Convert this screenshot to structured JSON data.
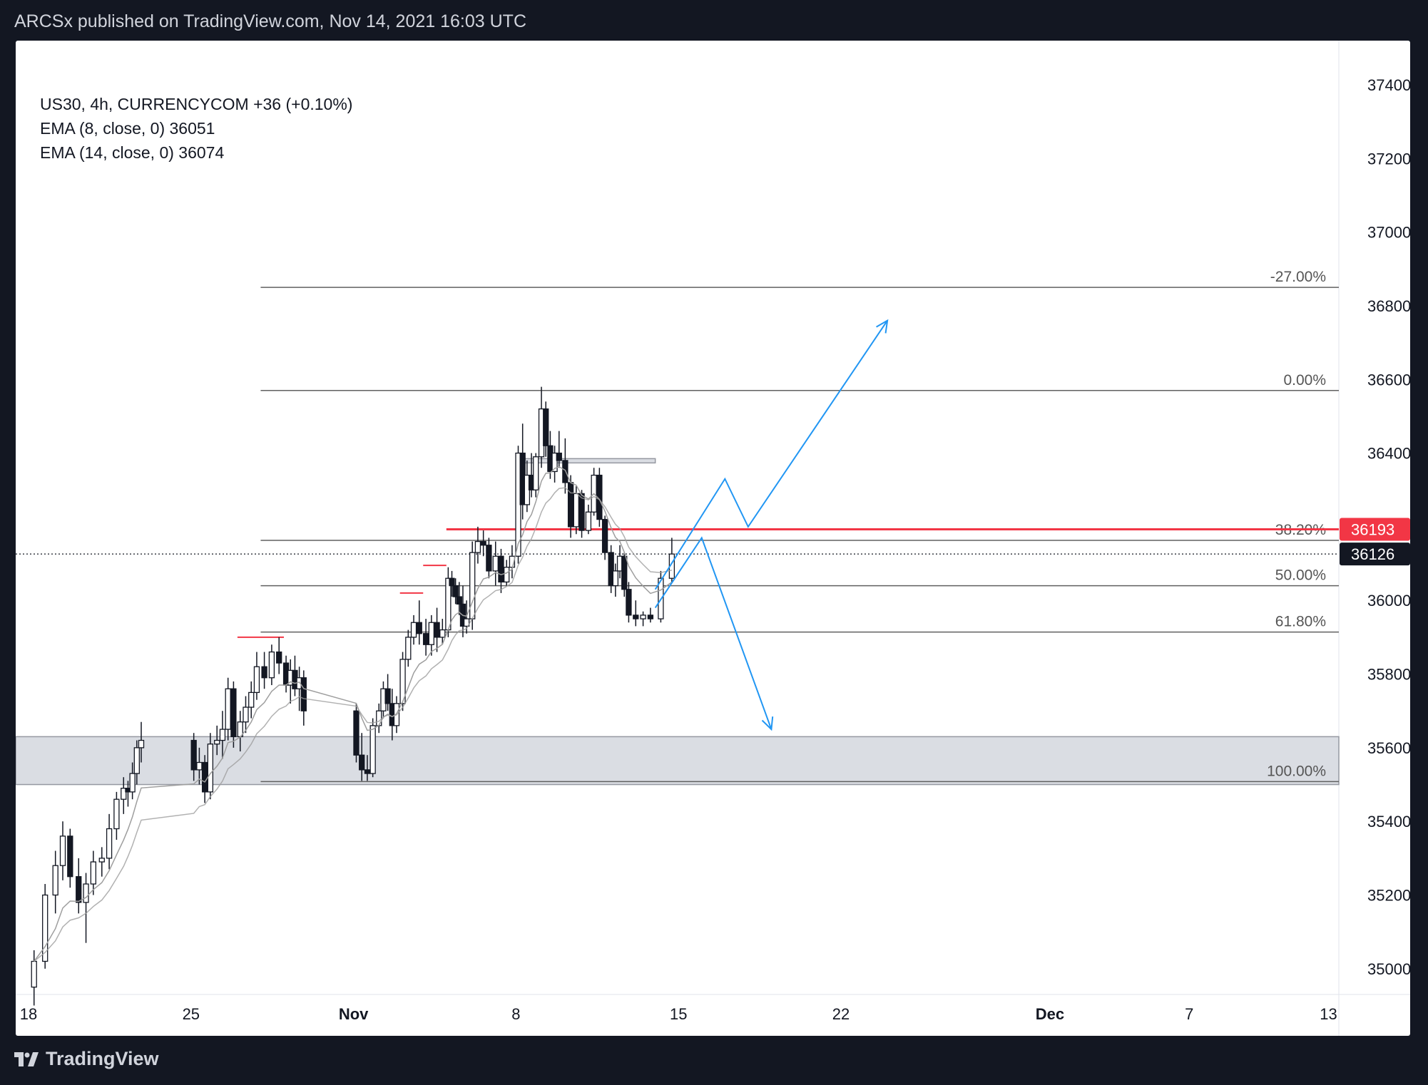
{
  "header": {
    "published": "ARCSx published on TradingView.com, Nov 14, 2021 16:03 UTC"
  },
  "legend": {
    "symbol": "US30, 4h, CURRENCYCOM  +36 (+0.10%)",
    "ema8": "EMA (8, close, 0)  36051",
    "ema14": "EMA (14, close, 0)  36074"
  },
  "footer": {
    "brand": "TradingView"
  },
  "colors": {
    "up": "#131722",
    "down": "#131722",
    "ema": "#9e9e9e",
    "fib": "#606060",
    "resistance": "#f23645",
    "arrow": "#2196f3",
    "zone": "#d1d4dc",
    "last_price_bg": "#131722"
  },
  "chart_data": {
    "type": "candlestick",
    "symbol": "US30",
    "interval": "4h",
    "ylim": [
      34930,
      37520
    ],
    "y_ticks": [
      35000,
      35200,
      35400,
      35600,
      35800,
      36000,
      36200,
      36400,
      36600,
      36800,
      37000,
      37200,
      37400
    ],
    "x_range": [
      "2021-10-18",
      "2021-12-14"
    ],
    "x_ticks": [
      {
        "date": "2021-10-18",
        "label": "18"
      },
      {
        "date": "2021-10-25",
        "label": "25"
      },
      {
        "date": "2021-11-01",
        "label": "Nov"
      },
      {
        "date": "2021-11-08",
        "label": "8"
      },
      {
        "date": "2021-11-15",
        "label": "15"
      },
      {
        "date": "2021-11-22",
        "label": "22"
      },
      {
        "date": "2021-12-01",
        "label": "Dec"
      },
      {
        "date": "2021-12-07",
        "label": "7"
      },
      {
        "date": "2021-12-13",
        "label": "13"
      }
    ],
    "candles": [
      [
        "2021-10-18",
        34950,
        35050,
        34900,
        35020
      ],
      [
        "2021-10-18",
        35020,
        35230,
        35000,
        35200
      ],
      [
        "2021-10-19",
        35200,
        35320,
        35150,
        35280
      ],
      [
        "2021-10-19",
        35280,
        35400,
        35240,
        35360
      ],
      [
        "2021-10-19",
        35360,
        35380,
        35220,
        35250
      ],
      [
        "2021-10-20",
        35250,
        35300,
        35150,
        35180
      ],
      [
        "2021-10-20",
        35180,
        35260,
        35070,
        35230
      ],
      [
        "2021-10-20",
        35230,
        35320,
        35200,
        35290
      ],
      [
        "2021-10-21",
        35290,
        35330,
        35250,
        35300
      ],
      [
        "2021-10-21",
        35300,
        35420,
        35270,
        35380
      ],
      [
        "2021-10-21",
        35380,
        35480,
        35350,
        35460
      ],
      [
        "2021-10-22",
        35460,
        35520,
        35420,
        35490
      ],
      [
        "2021-10-22",
        35490,
        35510,
        35440,
        35480
      ],
      [
        "2021-10-22",
        35480,
        35560,
        35460,
        35530
      ],
      [
        "2021-10-22",
        35530,
        35620,
        35500,
        35600
      ],
      [
        "2021-10-22",
        35600,
        35670,
        35560,
        35620
      ],
      [
        "2021-10-25",
        35620,
        35640,
        35510,
        35540
      ],
      [
        "2021-10-25",
        35540,
        35600,
        35500,
        35560
      ],
      [
        "2021-10-25",
        35560,
        35580,
        35450,
        35480
      ],
      [
        "2021-10-25",
        35480,
        35640,
        35460,
        35610
      ],
      [
        "2021-10-26",
        35610,
        35660,
        35580,
        35620
      ],
      [
        "2021-10-26",
        35620,
        35700,
        35570,
        35650
      ],
      [
        "2021-10-26",
        35650,
        35790,
        35620,
        35760
      ],
      [
        "2021-10-26",
        35760,
        35780,
        35600,
        35630
      ],
      [
        "2021-10-27",
        35630,
        35700,
        35590,
        35670
      ],
      [
        "2021-10-27",
        35670,
        35740,
        35640,
        35710
      ],
      [
        "2021-10-27",
        35710,
        35780,
        35680,
        35750
      ],
      [
        "2021-10-27",
        35750,
        35860,
        35730,
        35820
      ],
      [
        "2021-10-28",
        35820,
        35860,
        35760,
        35790
      ],
      [
        "2021-10-28",
        35790,
        35880,
        35770,
        35860
      ],
      [
        "2021-10-28",
        35860,
        35900,
        35800,
        35830
      ],
      [
        "2021-10-29",
        35830,
        35850,
        35750,
        35770
      ],
      [
        "2021-10-29",
        35770,
        35840,
        35720,
        35810
      ],
      [
        "2021-10-29",
        35810,
        35850,
        35740,
        35760
      ],
      [
        "2021-10-29",
        35760,
        35820,
        35700,
        35790
      ],
      [
        "2021-10-29",
        35790,
        35810,
        35660,
        35700
      ],
      [
        "2021-11-01",
        35700,
        35720,
        35560,
        35580
      ],
      [
        "2021-11-01",
        35580,
        35640,
        35510,
        35540
      ],
      [
        "2021-11-01",
        35540,
        35580,
        35510,
        35530
      ],
      [
        "2021-11-01",
        35530,
        35680,
        35520,
        35660
      ],
      [
        "2021-11-02",
        35660,
        35720,
        35640,
        35700
      ],
      [
        "2021-11-02",
        35700,
        35780,
        35680,
        35760
      ],
      [
        "2021-11-02",
        35760,
        35800,
        35700,
        35720
      ],
      [
        "2021-11-02",
        35720,
        35760,
        35620,
        35660
      ],
      [
        "2021-11-02",
        35660,
        35740,
        35640,
        35720
      ],
      [
        "2021-11-03",
        35720,
        35860,
        35700,
        35840
      ],
      [
        "2021-11-03",
        35840,
        35920,
        35820,
        35900
      ],
      [
        "2021-11-03",
        35900,
        35960,
        35880,
        35940
      ],
      [
        "2021-11-03",
        35940,
        36000,
        35880,
        35910
      ],
      [
        "2021-11-04",
        35910,
        35950,
        35850,
        35880
      ],
      [
        "2021-11-04",
        35880,
        35960,
        35850,
        35940
      ],
      [
        "2021-11-04",
        35940,
        35980,
        35860,
        35900
      ],
      [
        "2021-11-04",
        35900,
        35950,
        35880,
        35920
      ],
      [
        "2021-11-05",
        35920,
        36090,
        35900,
        36060
      ],
      [
        "2021-11-05",
        36060,
        36080,
        36010,
        36040
      ],
      [
        "2021-11-05",
        36040,
        36060,
        35990,
        36010
      ],
      [
        "2021-11-05",
        36010,
        36050,
        35960,
        35990
      ],
      [
        "2021-11-05",
        35990,
        36040,
        35900,
        35930
      ],
      [
        "2021-11-05",
        35930,
        36000,
        35910,
        35950
      ],
      [
        "2021-11-06",
        35950,
        36160,
        35920,
        36130
      ],
      [
        "2021-11-06",
        36130,
        36200,
        36100,
        36160
      ],
      [
        "2021-11-06",
        36160,
        36190,
        36120,
        36150
      ],
      [
        "2021-11-06",
        36150,
        36170,
        36060,
        36080
      ],
      [
        "2021-11-07",
        36080,
        36160,
        36040,
        36120
      ],
      [
        "2021-11-07",
        36120,
        36140,
        36020,
        36050
      ],
      [
        "2021-11-07",
        36050,
        36110,
        36040,
        36090
      ],
      [
        "2021-11-07",
        36090,
        36150,
        36060,
        36120
      ],
      [
        "2021-11-08",
        36120,
        36420,
        36100,
        36400
      ],
      [
        "2021-11-08",
        36400,
        36480,
        36220,
        36260
      ],
      [
        "2021-11-08",
        36260,
        36380,
        36240,
        36340
      ],
      [
        "2021-11-08",
        36340,
        36400,
        36280,
        36300
      ],
      [
        "2021-11-08",
        36300,
        36400,
        36280,
        36390
      ],
      [
        "2021-11-09",
        36390,
        36580,
        36360,
        36520
      ],
      [
        "2021-11-09",
        36520,
        36540,
        36390,
        36420
      ],
      [
        "2021-11-09",
        36420,
        36460,
        36330,
        36350
      ],
      [
        "2021-11-09",
        36350,
        36420,
        36320,
        36400
      ],
      [
        "2021-11-09",
        36400,
        36460,
        36360,
        36380
      ],
      [
        "2021-11-10",
        36380,
        36440,
        36290,
        36320
      ],
      [
        "2021-11-10",
        36320,
        36340,
        36170,
        36200
      ],
      [
        "2021-11-10",
        36200,
        36310,
        36180,
        36290
      ],
      [
        "2021-11-10",
        36290,
        36300,
        36170,
        36190
      ],
      [
        "2021-11-11",
        36190,
        36260,
        36180,
        36240
      ],
      [
        "2021-11-11",
        36240,
        36360,
        36230,
        36340
      ],
      [
        "2021-11-11",
        36340,
        36360,
        36200,
        36220
      ],
      [
        "2021-11-11",
        36220,
        36230,
        36110,
        36130
      ],
      [
        "2021-11-12",
        36130,
        36150,
        36020,
        36040
      ],
      [
        "2021-11-12",
        36040,
        36100,
        36010,
        36080
      ],
      [
        "2021-11-12",
        36080,
        36150,
        36060,
        36120
      ],
      [
        "2021-11-12",
        36120,
        36130,
        36010,
        36030
      ],
      [
        "2021-11-12",
        36030,
        36050,
        35940,
        35960
      ],
      [
        "2021-11-13",
        35960,
        36000,
        35930,
        35950
      ],
      [
        "2021-11-13",
        35950,
        35970,
        35930,
        35960
      ],
      [
        "2021-11-13",
        35960,
        35980,
        35940,
        35950
      ],
      [
        "2021-11-14",
        35950,
        36080,
        35940,
        36060
      ],
      [
        "2021-11-14",
        36060,
        36170,
        36050,
        36126
      ]
    ],
    "ema_lines": [
      {
        "name": "EMA (8, close, 0)",
        "value": 36051
      },
      {
        "name": "EMA (14, close, 0)",
        "value": 36074
      }
    ],
    "fib_levels": [
      {
        "level": "-27.00%",
        "price": 36850
      },
      {
        "level": "0.00%",
        "price": 36570
      },
      {
        "level": "38.20%",
        "price": 36163
      },
      {
        "level": "50.00%",
        "price": 36040
      },
      {
        "level": "61.80%",
        "price": 35914
      },
      {
        "level": "100.00%",
        "price": 35508
      }
    ],
    "resistance_line": {
      "price": 36193,
      "label": "36193"
    },
    "last_price": {
      "price": 36126,
      "label": "36126"
    },
    "zones": [
      {
        "from": "2021-10-18",
        "to": "2021-12-14",
        "low": 35500,
        "high": 35630
      },
      {
        "from": "2021-11-08",
        "to": "2021-11-14",
        "low": 36375,
        "high": 36385
      }
    ],
    "swing_marks": [
      {
        "from": "2021-10-27",
        "to": "2021-10-29",
        "price": 35900
      },
      {
        "from": "2021-11-03",
        "to": "2021-11-04",
        "price": 36020
      },
      {
        "from": "2021-11-04",
        "to": "2021-11-05",
        "price": 36095
      }
    ],
    "projections": [
      {
        "points": [
          [
            "2021-11-14",
            36030
          ],
          [
            "2021-11-17",
            36330
          ],
          [
            "2021-11-18",
            36200
          ],
          [
            "2021-11-24",
            36760
          ]
        ]
      },
      {
        "points": [
          [
            "2021-11-14",
            35980
          ],
          [
            "2021-11-16",
            36170
          ],
          [
            "2021-11-19",
            35650
          ]
        ]
      }
    ]
  }
}
